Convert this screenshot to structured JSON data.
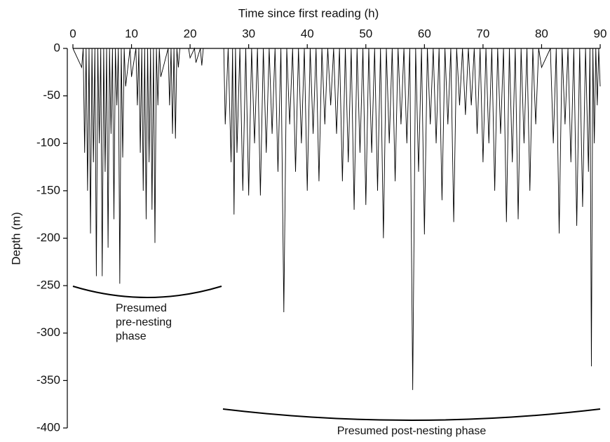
{
  "chart_data": {
    "type": "line",
    "xlabel": "Time since first reading (h)",
    "ylabel": "Depth (m)",
    "xlim": [
      0,
      90
    ],
    "xticks": [
      0,
      10,
      20,
      30,
      40,
      50,
      60,
      70,
      80,
      90
    ],
    "ylim": [
      -400,
      0
    ],
    "yticks": [
      -400,
      -350,
      -300,
      -250,
      -200,
      -150,
      -100,
      -50,
      0
    ],
    "annotations": [
      {
        "lines": [
          "Presumed",
          "pre-nesting",
          "phase"
        ]
      },
      {
        "text": "Presumed post-nesting phase"
      }
    ],
    "series": [
      {
        "color": "#000000",
        "x": [
          0,
          1.5,
          1.75,
          2,
          2.25,
          2.5,
          2.75,
          3,
          3.25,
          3.5,
          3.75,
          4,
          4.25,
          4.5,
          4.75,
          5,
          5.25,
          5.5,
          5.75,
          6,
          6.25,
          6.5,
          6.75,
          7,
          7.25,
          7.5,
          7.75,
          8,
          8.25,
          8.5,
          8.75,
          9,
          9.75,
          10,
          10.75,
          11,
          11.25,
          11.5,
          11.75,
          12,
          12.25,
          12.5,
          12.75,
          13,
          13.25,
          13.5,
          13.75,
          14,
          14.25,
          14.5,
          14.75,
          15,
          16.25,
          16.5,
          16.75,
          17,
          17.25,
          17.5,
          17.75,
          18,
          18.25,
          19.75,
          20,
          20.75,
          21,
          21.75,
          22,
          22.25,
          25.75,
          26,
          26.5,
          27,
          27.25,
          27.5,
          27.75,
          28,
          28.5,
          29,
          29.5,
          30,
          30.5,
          31,
          31.5,
          32,
          32.5,
          33,
          33.5,
          34,
          34.5,
          35,
          35.5,
          36,
          36.5,
          37,
          37.5,
          38,
          38.5,
          39,
          39.5,
          40,
          40.5,
          41,
          41.5,
          42,
          42.5,
          43,
          43.5,
          44,
          44.5,
          45,
          45.5,
          46,
          46.5,
          47,
          47.5,
          48,
          48.5,
          49,
          49.5,
          50,
          50.5,
          51,
          51.5,
          52,
          52.5,
          53,
          53.5,
          54,
          54.5,
          55,
          55.5,
          56,
          56.5,
          57,
          57.5,
          58,
          58.5,
          59,
          59.5,
          60,
          60.5,
          61,
          61.5,
          62,
          62.5,
          63,
          63.5,
          64,
          64.5,
          65,
          65.5,
          66,
          66.5,
          67,
          67.5,
          68,
          68.5,
          69,
          69.5,
          70,
          70.5,
          71,
          71.5,
          72,
          72.5,
          73,
          73.5,
          74,
          74.5,
          75,
          75.5,
          76,
          76.5,
          77,
          77.5,
          78,
          78.5,
          79,
          79.5,
          80,
          81.5,
          82,
          82.5,
          83,
          83.5,
          84,
          84.5,
          85,
          85.5,
          86,
          86.5,
          87,
          87.5,
          88,
          88.25,
          88.5,
          88.75,
          89,
          89.25,
          89.5,
          89.75,
          90
        ],
        "values": [
          0,
          -20,
          0,
          -110,
          0,
          -150,
          0,
          -195,
          0,
          -120,
          0,
          -240,
          0,
          -100,
          0,
          -240,
          0,
          -130,
          0,
          -210,
          0,
          -90,
          0,
          -180,
          0,
          -60,
          0,
          -248,
          0,
          -115,
          0,
          -40,
          0,
          -30,
          0,
          -60,
          0,
          -110,
          0,
          -150,
          0,
          -180,
          0,
          -120,
          0,
          -170,
          0,
          -205,
          0,
          -60,
          0,
          -30,
          0,
          -60,
          0,
          -90,
          0,
          -95,
          0,
          -20,
          0,
          0,
          -10,
          0,
          -15,
          0,
          -18,
          0,
          0,
          -80,
          0,
          -120,
          0,
          -175,
          0,
          -110,
          0,
          -150,
          0,
          -155,
          0,
          -100,
          0,
          -155,
          0,
          -110,
          0,
          -90,
          0,
          -130,
          0,
          -278,
          0,
          -80,
          0,
          -130,
          0,
          -100,
          0,
          -150,
          0,
          -90,
          0,
          -140,
          0,
          -80,
          0,
          -60,
          0,
          -90,
          0,
          -140,
          0,
          -120,
          0,
          -170,
          0,
          -110,
          0,
          -165,
          0,
          -110,
          0,
          -150,
          0,
          -200,
          0,
          -100,
          0,
          -140,
          0,
          -80,
          0,
          -100,
          0,
          -360,
          0,
          -130,
          0,
          -196,
          0,
          -80,
          0,
          -100,
          0,
          -160,
          0,
          -80,
          0,
          -183,
          0,
          -60,
          0,
          -70,
          0,
          -60,
          0,
          -90,
          0,
          -120,
          0,
          -100,
          0,
          -150,
          0,
          -90,
          0,
          -183,
          0,
          -120,
          0,
          -180,
          0,
          -100,
          0,
          -150,
          0,
          -80,
          0,
          -20,
          0,
          -100,
          0,
          -195,
          0,
          -80,
          0,
          -120,
          0,
          -187,
          0,
          -167,
          0,
          -130,
          0,
          -335,
          0,
          -100,
          0,
          -60,
          0,
          -40
        ]
      }
    ]
  }
}
